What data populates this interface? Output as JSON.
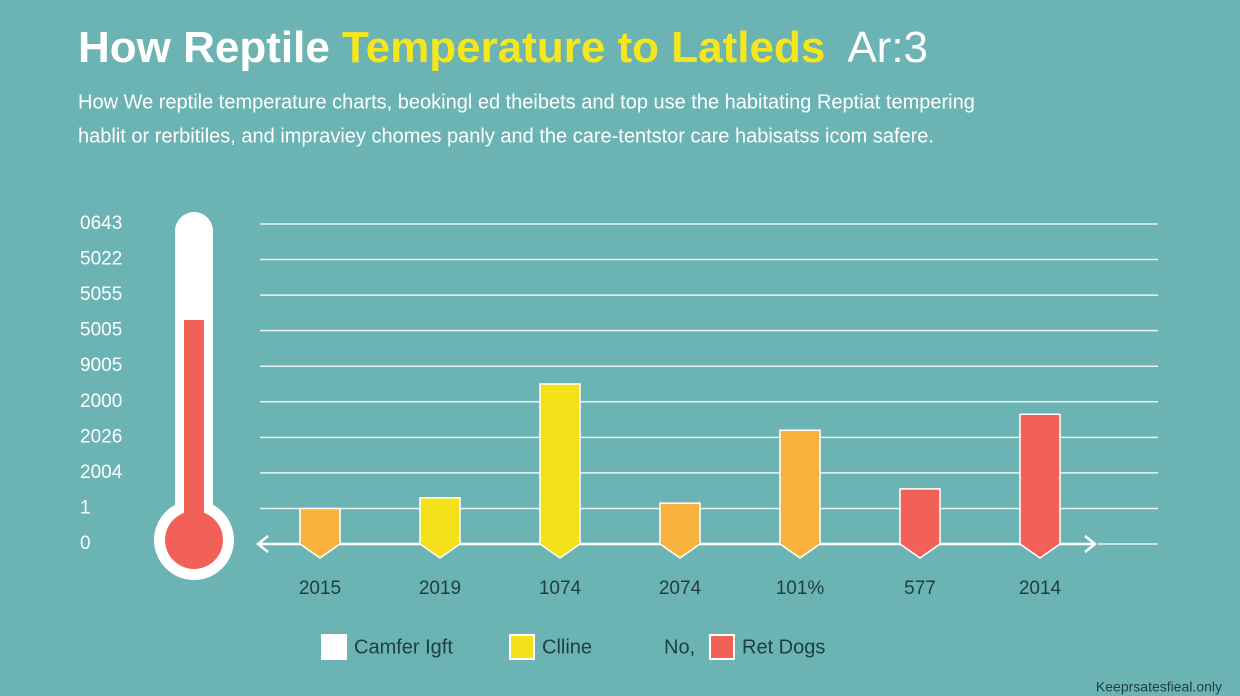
{
  "chart_data": {
    "type": "bar",
    "title_parts": [
      {
        "text": "How Reptile ",
        "color": "#ffffff"
      },
      {
        "text": "Temperature to Latleds",
        "color": "#f5e61e"
      },
      {
        "text": "Ar:3",
        "color": "#ffffff"
      }
    ],
    "subtitle": [
      "How We reptile temperature charts, beokingl ed theibets and top use the habitating Reptiat tempering",
      "hablit or rerbitiles, and impraviey chomes panly and the care-tentstor care habisatss icom safere."
    ],
    "categories": [
      "2015",
      "2019",
      "1074",
      "2074",
      "101%",
      "577",
      "2014"
    ],
    "values": [
      1.0,
      1.3,
      4.5,
      1.15,
      3.2,
      1.55,
      3.65
    ],
    "colors": [
      "#f8b23e",
      "#f5e119",
      "#f5e119",
      "#f8b23e",
      "#f8b23e",
      "#f26157",
      "#f26157"
    ],
    "ylim": [
      0,
      9
    ],
    "yticks": [
      0,
      1,
      {
        "value": 2,
        "label": "2004"
      },
      {
        "value": 3,
        "label": "2026"
      },
      {
        "value": 4,
        "label": "2000"
      },
      {
        "value": 5,
        "label": "9005"
      },
      {
        "value": 6,
        "label": "5005"
      },
      {
        "value": 7,
        "label": "5055"
      },
      {
        "value": 8,
        "label": "5022"
      },
      {
        "value": 9,
        "label": "0643"
      }
    ],
    "grid": true,
    "legend": [
      {
        "name": "Camfer Igft",
        "color": "#ffffff"
      },
      {
        "name": "Clline",
        "color": "#f5e119"
      },
      {
        "prefix": "No,",
        "name": "Ret Dogs",
        "color": "#f26157"
      }
    ],
    "footer": "Keeprsatesfieal.only"
  }
}
